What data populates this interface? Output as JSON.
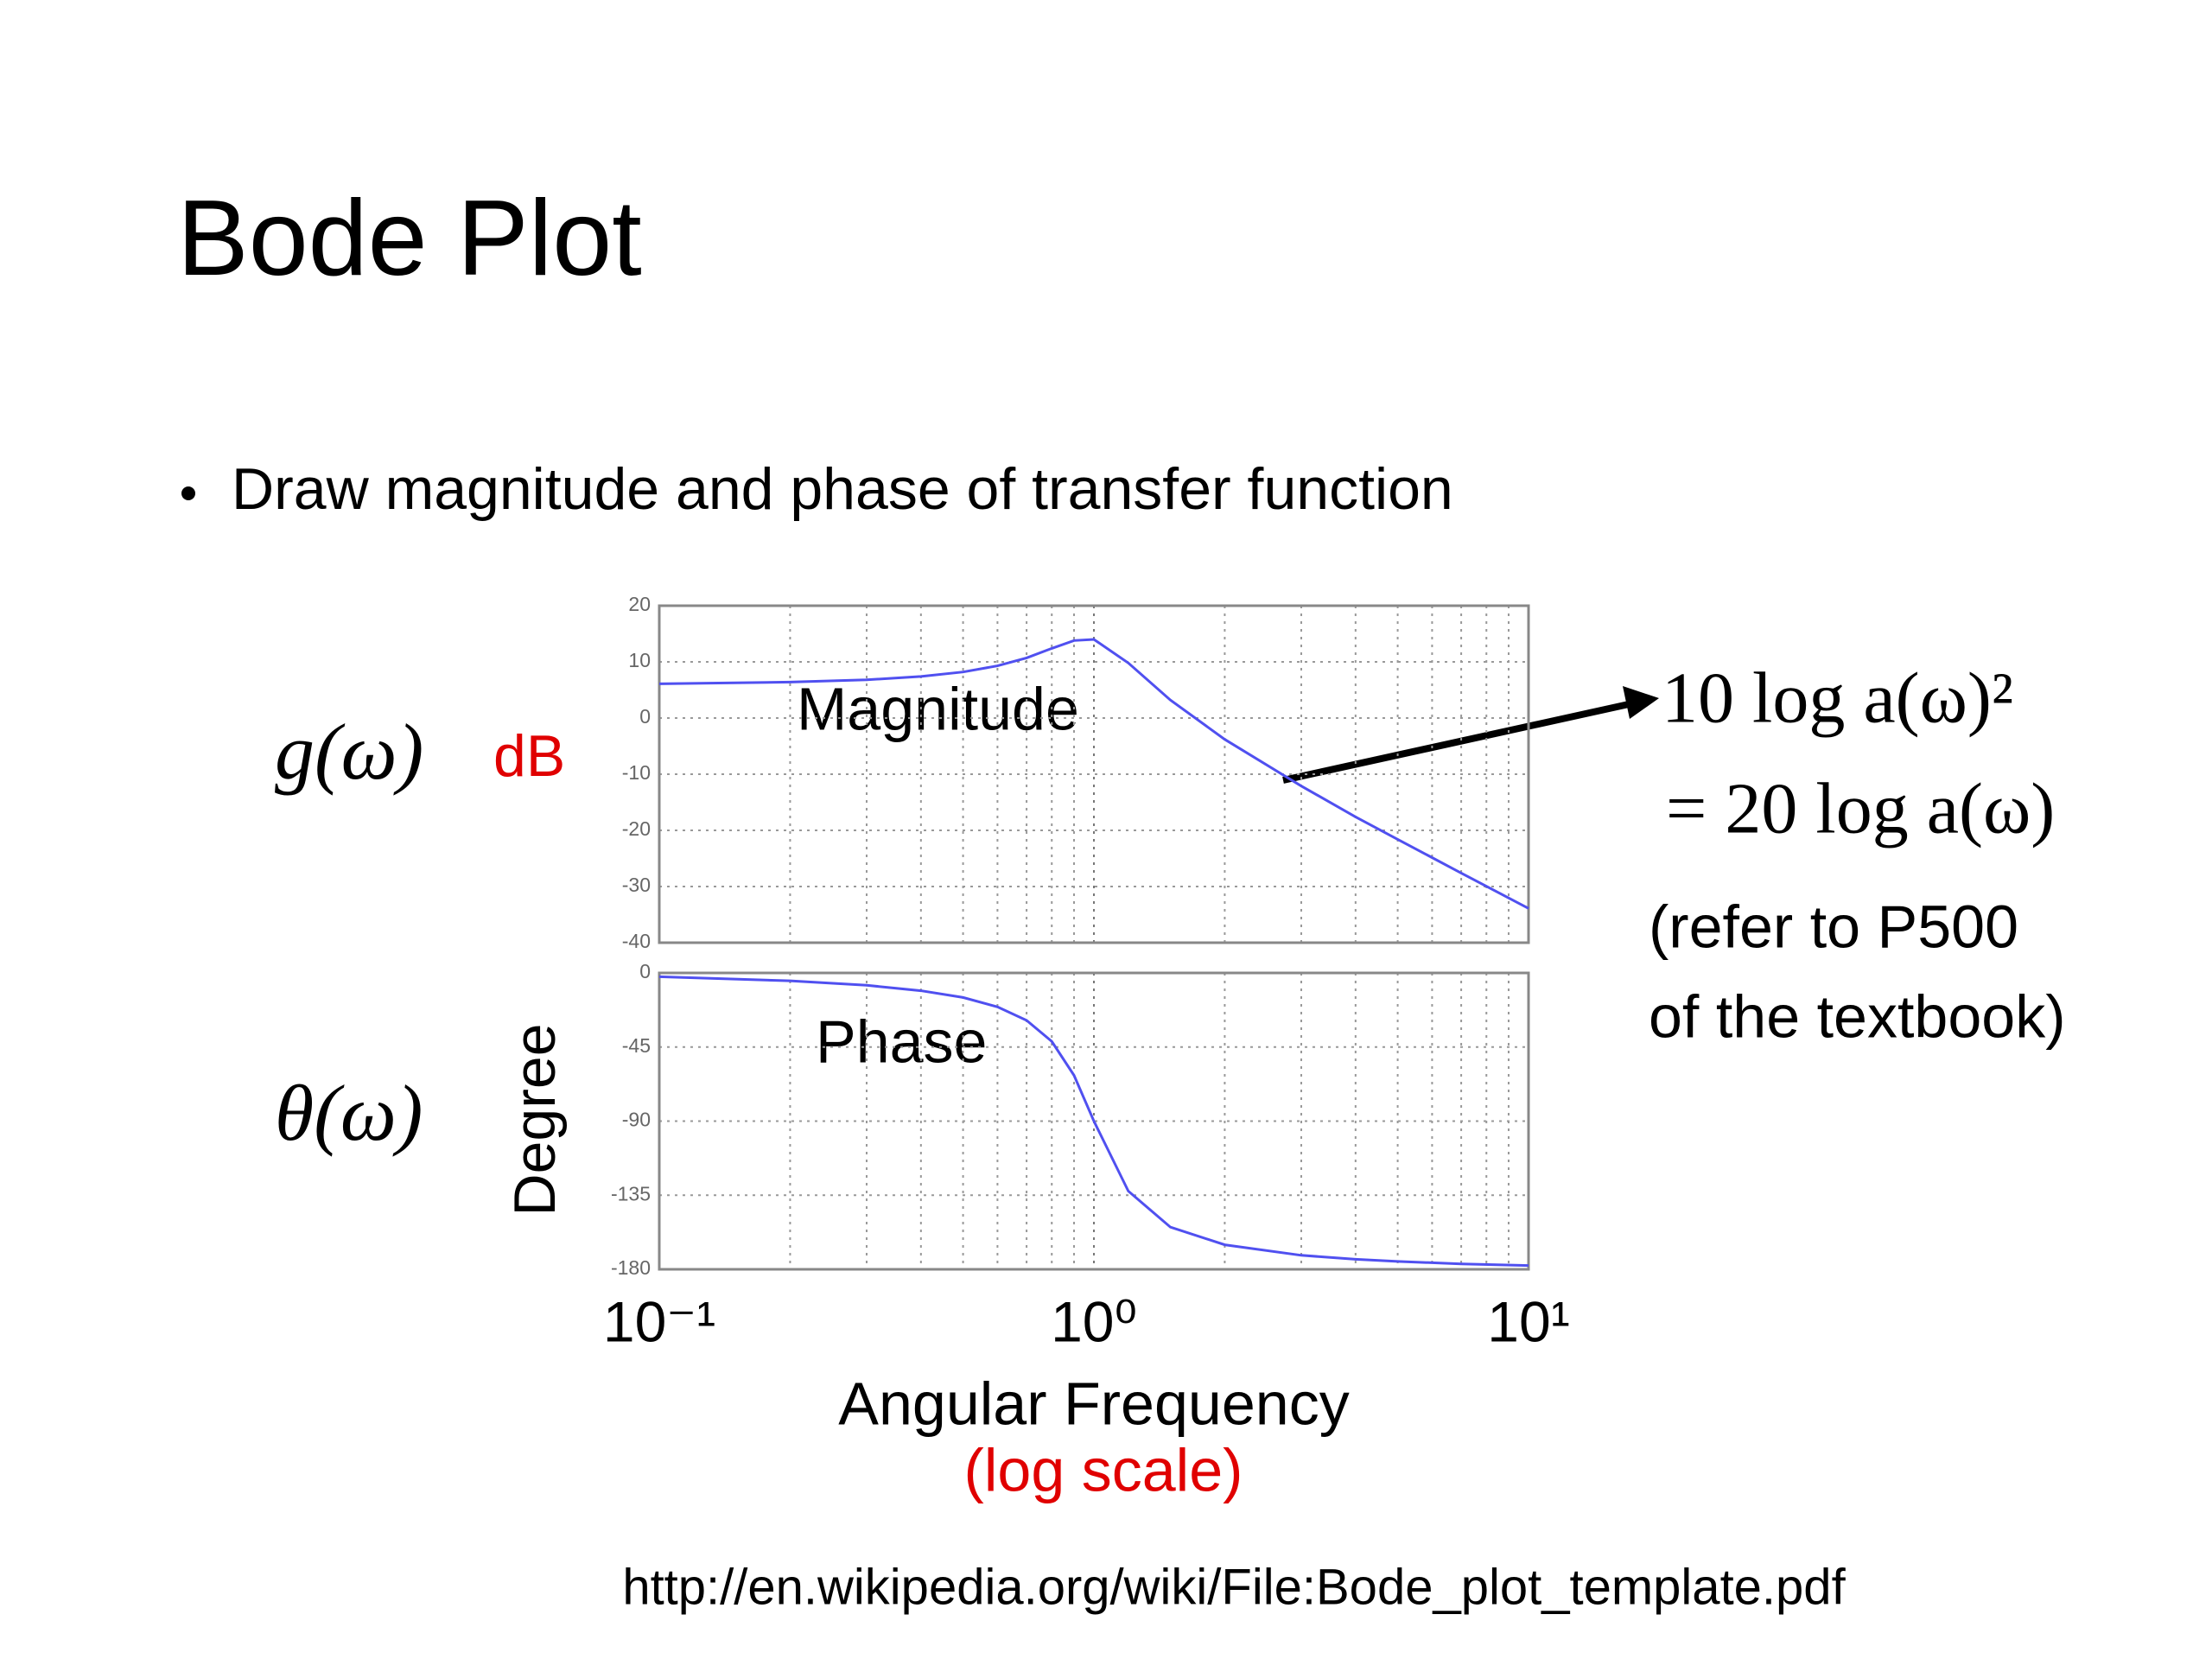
{
  "title": "Bode Plot",
  "bullet": "Draw magnitude and phase of transfer function",
  "magnitude_symbol": "g(ω)",
  "phase_symbol": "θ(ω)",
  "equation_lines": [
    "10 log a(ω)²",
    "= 20 log a(ω)"
  ],
  "note_lines": [
    "(refer to P500",
    "of the textbook)"
  ],
  "source": "http://en.wikipedia.org/wiki/File:Bode_plot_template.pdf",
  "chart_data": [
    {
      "type": "line",
      "annotation": "Magnitude",
      "ylabel": "dB",
      "xscale": "log",
      "grid": true,
      "xlim": [
        0.1,
        10
      ],
      "xticks": [
        0.1,
        1,
        10
      ],
      "xminorticks": [
        0.2,
        0.3,
        0.4,
        0.5,
        0.6,
        0.7,
        0.8,
        0.9,
        2,
        3,
        4,
        5,
        6,
        7,
        8,
        9
      ],
      "ylim": [
        -40,
        20
      ],
      "yticks": [
        -40,
        -30,
        -20,
        -10,
        0,
        10,
        20
      ],
      "x": [
        0.1,
        0.2,
        0.3,
        0.4,
        0.5,
        0.6,
        0.7,
        0.8,
        0.9,
        1.0,
        1.2,
        1.5,
        2,
        3,
        4,
        5,
        7,
        10
      ],
      "series": [
        {
          "name": "Magnitude",
          "color": "#5050f0",
          "values": [
            6.1,
            6.4,
            6.8,
            7.4,
            8.2,
            9.3,
            10.7,
            12.4,
            13.8,
            14.0,
            9.8,
            3.2,
            -3.8,
            -12.1,
            -17.6,
            -21.6,
            -27.6,
            -33.9
          ]
        }
      ]
    },
    {
      "type": "line",
      "annotation": "Phase",
      "ylabel": "Degree",
      "xlabel": "Angular Frequency",
      "xlabel_note": "(log scale)",
      "xscale": "log",
      "grid": true,
      "xlim": [
        0.1,
        10
      ],
      "xticks": [
        {
          "value": 0.1,
          "label": "10⁻¹"
        },
        {
          "value": 1,
          "label": "10⁰"
        },
        {
          "value": 10,
          "label": "10¹"
        }
      ],
      "xminorticks": [
        0.2,
        0.3,
        0.4,
        0.5,
        0.6,
        0.7,
        0.8,
        0.9,
        2,
        3,
        4,
        5,
        6,
        7,
        8,
        9
      ],
      "ylim": [
        -180,
        0
      ],
      "yticks": [
        -180,
        -135,
        -90,
        -45,
        0
      ],
      "x": [
        0.1,
        0.2,
        0.3,
        0.4,
        0.5,
        0.6,
        0.7,
        0.8,
        0.9,
        1.0,
        1.2,
        1.5,
        2,
        3,
        4,
        5,
        7,
        10
      ],
      "series": [
        {
          "name": "Phase",
          "color": "#5050f0",
          "values": [
            -2.3,
            -4.8,
            -7.5,
            -10.8,
            -14.9,
            -20.6,
            -28.8,
            -41.6,
            -62.2,
            -90,
            -132.5,
            -154.4,
            -165.1,
            -171.5,
            -173.9,
            -175.2,
            -176.7,
            -177.7
          ]
        }
      ]
    }
  ]
}
